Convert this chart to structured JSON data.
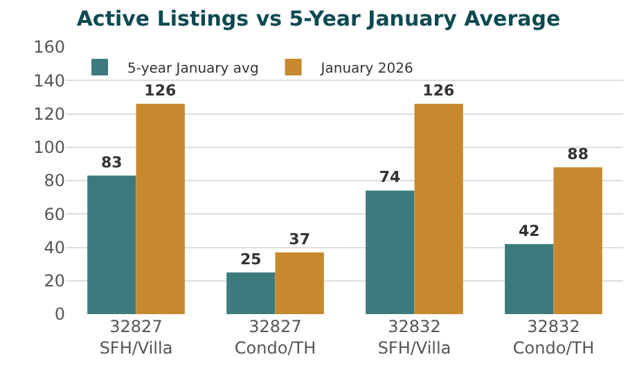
{
  "chart_data": {
    "type": "bar",
    "title": "Active Listings vs 5-Year January Average",
    "categories": [
      "32827\nSFH/Villa",
      "32827\nCondo/TH",
      "32832\nSFH/Villa",
      "32832\nCondo/TH"
    ],
    "series": [
      {
        "name": "5-year January avg",
        "color": "#3d7a7d",
        "values": [
          83,
          25,
          74,
          42
        ]
      },
      {
        "name": "January 2026",
        "color": "#c8892e",
        "values": [
          126,
          37,
          126,
          88
        ]
      }
    ],
    "ylim": [
      0,
      160
    ],
    "yticks": [
      0,
      20,
      40,
      60,
      80,
      100,
      120,
      140,
      160
    ],
    "grid": "y",
    "legend": "top left",
    "data_labels": true
  }
}
